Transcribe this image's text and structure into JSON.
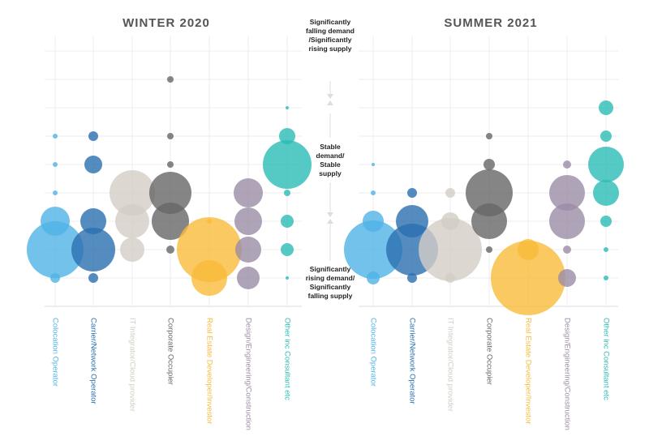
{
  "chart_data": {
    "type": "scatter",
    "subtype": "bubble",
    "panels": [
      {
        "title": "WINTER 2020"
      },
      {
        "title": "SUMMER 2021"
      }
    ],
    "categories": [
      {
        "name": "Colocation Operator",
        "color": "#4fb3e6"
      },
      {
        "name": "Carrier/Network Operator",
        "color": "#2a6fb0"
      },
      {
        "name": "IT Integrator/Cloud provider",
        "color": "#d3cdc5"
      },
      {
        "name": "Corporate Occupier",
        "color": "#666666"
      },
      {
        "name": "Real Estate Developer/Investor",
        "color": "#f9bb3a"
      },
      {
        "name": "Design/Engineering/Construction",
        "color": "#9b8ca6"
      },
      {
        "name": "Other inc Consultant etc",
        "color": "#2bbcb4"
      }
    ],
    "y_scale": "ordinal levels 1 (bottom) to 9 (top), unlabelled",
    "y_annotations": {
      "top": "Significantly falling demand /Significantly rising supply",
      "middle": "Stable demand/ Stable supply",
      "bottom": "Significantly rising demand/ Significantly falling supply"
    },
    "grid": true,
    "bubbles_note": "points are [level, relative bubble area]",
    "series": [
      {
        "panel": 0,
        "category": 0,
        "points": [
          [
            6,
            9
          ],
          [
            5,
            9
          ],
          [
            4,
            9
          ],
          [
            3,
            324
          ],
          [
            2,
            1225
          ],
          [
            1,
            36
          ]
        ]
      },
      {
        "panel": 0,
        "category": 1,
        "points": [
          [
            6,
            36
          ],
          [
            5,
            121
          ],
          [
            3,
            256
          ],
          [
            2,
            729
          ],
          [
            1,
            36
          ]
        ]
      },
      {
        "panel": 0,
        "category": 2,
        "points": [
          [
            4,
            784
          ],
          [
            3,
            441
          ],
          [
            2,
            225
          ]
        ]
      },
      {
        "panel": 0,
        "category": 3,
        "points": [
          [
            8,
            16
          ],
          [
            6,
            16
          ],
          [
            5,
            16
          ],
          [
            4,
            676
          ],
          [
            3,
            529
          ],
          [
            2,
            25
          ]
        ]
      },
      {
        "panel": 0,
        "category": 4,
        "points": [
          [
            3,
            9
          ],
          [
            2,
            1600
          ],
          [
            1,
            484
          ]
        ]
      },
      {
        "panel": 0,
        "category": 5,
        "points": [
          [
            4,
            324
          ],
          [
            3,
            289
          ],
          [
            2,
            256
          ],
          [
            1,
            196
          ]
        ]
      },
      {
        "panel": 0,
        "category": 6,
        "points": [
          [
            7,
            4
          ],
          [
            6,
            100
          ],
          [
            5,
            900
          ],
          [
            4,
            16
          ],
          [
            3,
            64
          ],
          [
            2,
            64
          ],
          [
            1,
            4
          ]
        ]
      },
      {
        "panel": 1,
        "category": 0,
        "points": [
          [
            5,
            4
          ],
          [
            4,
            9
          ],
          [
            3,
            169
          ],
          [
            2,
            1296
          ],
          [
            1,
            64
          ]
        ]
      },
      {
        "panel": 1,
        "category": 1,
        "points": [
          [
            4,
            36
          ],
          [
            3,
            400
          ],
          [
            2,
            1024
          ],
          [
            1,
            36
          ]
        ]
      },
      {
        "panel": 1,
        "category": 2,
        "points": [
          [
            4,
            36
          ],
          [
            3,
            121
          ],
          [
            2,
            1521
          ],
          [
            1,
            36
          ]
        ]
      },
      {
        "panel": 1,
        "category": 3,
        "points": [
          [
            6,
            16
          ],
          [
            5,
            49
          ],
          [
            4,
            841
          ],
          [
            3,
            484
          ],
          [
            2,
            16
          ]
        ]
      },
      {
        "panel": 1,
        "category": 4,
        "points": [
          [
            2,
            169
          ],
          [
            1,
            2116
          ]
        ]
      },
      {
        "panel": 1,
        "category": 5,
        "points": [
          [
            5,
            25
          ],
          [
            4,
            484
          ],
          [
            3,
            484
          ],
          [
            2,
            25
          ],
          [
            1,
            121
          ]
        ]
      },
      {
        "panel": 1,
        "category": 6,
        "points": [
          [
            7,
            81
          ],
          [
            6,
            49
          ],
          [
            5,
            484
          ],
          [
            4,
            256
          ],
          [
            3,
            49
          ],
          [
            2,
            9
          ],
          [
            1,
            9
          ]
        ]
      }
    ]
  }
}
